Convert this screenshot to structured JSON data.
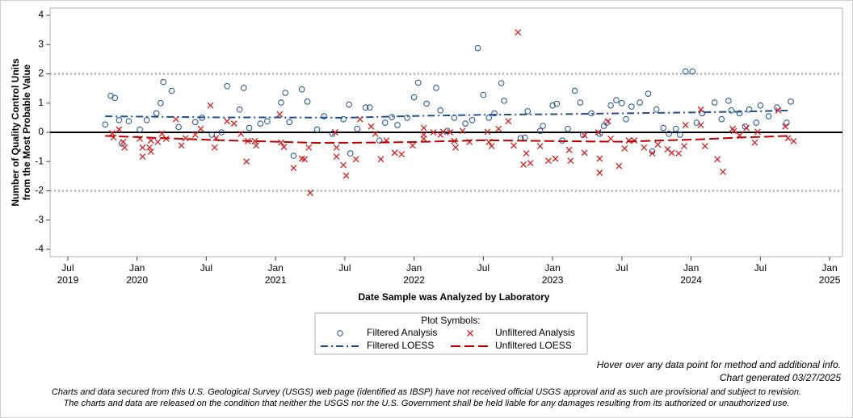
{
  "chart_data": {
    "type": "scatter",
    "y_label": [
      "Number of Quality Control Units",
      "from the Most Probable Value"
    ],
    "x_label": "Date Sample was Analyzed by Laboratory",
    "xlim": [
      2019.372,
      2025.093
    ],
    "ylim": [
      -4.25,
      4.25
    ],
    "xticks": [
      {
        "value": 2019.5,
        "label": "Jul",
        "year": "2019"
      },
      {
        "value": 2020.0,
        "label": "Jan",
        "year": "2020"
      },
      {
        "value": 2020.5,
        "label": "Jul"
      },
      {
        "value": 2021.0,
        "label": "Jan",
        "year": "2021"
      },
      {
        "value": 2021.5,
        "label": "Jul"
      },
      {
        "value": 2022.0,
        "label": "Jan",
        "year": "2022"
      },
      {
        "value": 2022.5,
        "label": "Jul"
      },
      {
        "value": 2023.0,
        "label": "Jan",
        "year": "2023"
      },
      {
        "value": 2023.5,
        "label": "Jul"
      },
      {
        "value": 2024.0,
        "label": "Jan",
        "year": "2024"
      },
      {
        "value": 2024.5,
        "label": "Jul"
      },
      {
        "value": 2025.0,
        "label": "Jan",
        "year": "2025"
      }
    ],
    "yticks": [
      -4,
      -3,
      -2,
      -1,
      0,
      1,
      2,
      3,
      4
    ],
    "reference_lines": [
      -2,
      2
    ],
    "zero_line": 0,
    "legend_title": "Plot Symbols:",
    "series": [
      {
        "name": "Filtered Analysis",
        "color": "#1f4f8f",
        "marker": "circle",
        "x": [
          2019.77,
          2019.81,
          2019.84,
          2019.87,
          2019.89,
          2019.94,
          2020.02,
          2020.07,
          2020.14,
          2020.17,
          2020.19,
          2020.25,
          2020.3,
          2020.42,
          2020.47,
          2020.54,
          2020.61,
          2020.65,
          2020.74,
          2020.77,
          2020.81,
          2020.89,
          2020.94,
          2021.04,
          2021.07,
          2021.1,
          2021.13,
          2021.19,
          2021.23,
          2021.3,
          2021.35,
          2021.41,
          2021.49,
          2021.53,
          2021.54,
          2021.59,
          2021.65,
          2021.68,
          2021.75,
          2021.79,
          2021.84,
          2021.88,
          2021.95,
          2022.0,
          2022.03,
          2022.09,
          2022.16,
          2022.19,
          2022.24,
          2022.29,
          2022.37,
          2022.42,
          2022.46,
          2022.5,
          2022.54,
          2022.58,
          2022.63,
          2022.65,
          2022.77,
          2022.8,
          2022.82,
          2022.91,
          2022.93,
          2023.0,
          2023.03,
          2023.07,
          2023.11,
          2023.16,
          2023.2,
          2023.22,
          2023.28,
          2023.34,
          2023.37,
          2023.39,
          2023.42,
          2023.46,
          2023.5,
          2023.53,
          2023.57,
          2023.63,
          2023.69,
          2023.72,
          2023.75,
          2023.8,
          2023.84,
          2023.89,
          2023.92,
          2023.96,
          2024.01,
          2024.04,
          2024.08,
          2024.17,
          2024.22,
          2024.27,
          2024.29,
          2024.35,
          2024.39,
          2024.42,
          2024.47,
          2024.5,
          2024.56,
          2024.62,
          2024.69,
          2024.72
        ],
        "values": [
          0.27,
          1.25,
          1.18,
          0.42,
          -0.38,
          0.38,
          0.1,
          0.42,
          0.65,
          1.0,
          1.72,
          1.42,
          0.18,
          0.35,
          0.5,
          -0.08,
          0.0,
          1.58,
          0.78,
          1.52,
          0.15,
          0.3,
          0.38,
          1.02,
          1.35,
          0.35,
          -0.8,
          1.47,
          1.05,
          0.1,
          0.55,
          -0.05,
          0.45,
          0.95,
          -0.72,
          0.12,
          0.85,
          0.85,
          -0.28,
          0.33,
          0.52,
          0.25,
          0.5,
          1.2,
          1.7,
          0.98,
          1.52,
          0.75,
          0.05,
          0.5,
          0.3,
          0.42,
          2.88,
          1.28,
          0.5,
          0.65,
          1.68,
          1.08,
          -0.2,
          -0.18,
          0.72,
          0.05,
          0.22,
          0.92,
          0.98,
          -0.28,
          0.12,
          1.42,
          1.02,
          -0.08,
          0.65,
          -0.05,
          0.22,
          0.33,
          0.92,
          1.1,
          1.0,
          0.45,
          0.88,
          1.02,
          1.32,
          -0.65,
          0.78,
          0.15,
          -0.05,
          0.12,
          -0.08,
          2.08,
          2.08,
          0.33,
          0.65,
          1.02,
          0.45,
          1.08,
          0.75,
          0.65,
          0.2,
          0.78,
          0.33,
          0.92,
          0.55,
          0.85,
          0.33,
          1.05
        ]
      },
      {
        "name": "Unfiltered Analysis",
        "color": "#d42020",
        "marker": "x",
        "x": [
          2019.82,
          2019.83,
          2019.87,
          2019.9,
          2019.91,
          2020.02,
          2020.04,
          2020.04,
          2020.09,
          2020.1,
          2020.1,
          2020.15,
          2020.18,
          2020.21,
          2020.28,
          2020.32,
          2020.35,
          2020.42,
          2020.46,
          2020.53,
          2020.56,
          2020.57,
          2020.65,
          2020.7,
          2020.75,
          2020.79,
          2020.8,
          2020.85,
          2020.86,
          2021.03,
          2021.04,
          2021.06,
          2021.13,
          2021.19,
          2021.21,
          2021.24,
          2021.25,
          2021.43,
          2021.44,
          2021.44,
          2021.49,
          2021.51,
          2021.58,
          2021.61,
          2021.69,
          2021.72,
          2021.76,
          2021.8,
          2021.86,
          2021.91,
          2021.99,
          2022.07,
          2022.07,
          2022.07,
          2022.14,
          2022.19,
          2022.21,
          2022.26,
          2022.29,
          2022.3,
          2022.35,
          2022.4,
          2022.53,
          2022.54,
          2022.56,
          2022.61,
          2022.68,
          2022.72,
          2022.75,
          2022.79,
          2022.81,
          2022.84,
          2022.91,
          2022.97,
          2023.02,
          2023.12,
          2023.13,
          2023.23,
          2023.23,
          2023.33,
          2023.34,
          2023.34,
          2023.4,
          2023.42,
          2023.48,
          2023.52,
          2023.55,
          2023.59,
          2023.66,
          2023.72,
          2023.76,
          2023.83,
          2023.86,
          2023.91,
          2023.95,
          2023.96,
          2024.07,
          2024.07,
          2024.1,
          2024.19,
          2024.23,
          2024.3,
          2024.31,
          2024.35,
          2024.4,
          2024.46,
          2024.48,
          2024.63,
          2024.68,
          2024.7,
          2024.74
        ],
        "values": [
          -0.03,
          -0.17,
          0.1,
          -0.33,
          -0.52,
          -0.22,
          -0.52,
          -0.83,
          -0.52,
          -0.28,
          -0.66,
          -0.33,
          -0.05,
          -0.22,
          0.45,
          -0.45,
          -0.2,
          -0.08,
          0.12,
          0.92,
          -0.52,
          -0.2,
          0.38,
          0.3,
          -0.05,
          -1.0,
          -0.3,
          -0.3,
          -0.45,
          0.62,
          -0.35,
          -0.5,
          -1.22,
          -0.9,
          -0.92,
          -0.52,
          -2.07,
          0.0,
          -0.52,
          -0.83,
          -1.12,
          -1.48,
          -0.92,
          0.45,
          0.2,
          -0.05,
          -0.92,
          -0.28,
          -0.7,
          -0.75,
          -0.45,
          0.15,
          -0.08,
          -0.22,
          0.0,
          -0.08,
          0.02,
          0.0,
          -0.3,
          -0.52,
          0.05,
          -0.33,
          0.02,
          -0.33,
          -0.47,
          0.12,
          0.38,
          -0.45,
          3.42,
          -1.1,
          -0.72,
          -1.05,
          -0.47,
          -0.97,
          -0.9,
          -0.6,
          -0.97,
          -0.7,
          -0.1,
          0.0,
          -0.9,
          -1.38,
          0.38,
          -0.22,
          -1.15,
          -0.55,
          -0.28,
          -0.28,
          -0.52,
          -0.72,
          -0.42,
          -0.58,
          -0.7,
          -0.72,
          -0.47,
          0.25,
          0.78,
          0.25,
          -0.47,
          -0.92,
          -1.35,
          0.12,
          0.05,
          -0.1,
          0.15,
          -0.35,
          0.02,
          0.75,
          0.2,
          -0.2,
          -0.3
        ]
      },
      {
        "name": "Filtered LOESS",
        "color": "#1f4f8f",
        "line": "dashdot",
        "x": [
          2019.77,
          2020.2,
          2020.6,
          2021.0,
          2021.5,
          2022.0,
          2022.5,
          2023.0,
          2023.5,
          2024.0,
          2024.4,
          2024.72
        ],
        "values": [
          0.55,
          0.53,
          0.51,
          0.51,
          0.5,
          0.56,
          0.6,
          0.62,
          0.65,
          0.68,
          0.71,
          0.75
        ]
      },
      {
        "name": "Unfiltered LOESS",
        "color": "#c00000",
        "line": "dash",
        "x": [
          2019.77,
          2020.2,
          2020.6,
          2021.0,
          2021.3,
          2021.7,
          2022.0,
          2022.5,
          2023.0,
          2023.5,
          2024.0,
          2024.4,
          2024.72
        ],
        "values": [
          -0.12,
          -0.2,
          -0.27,
          -0.32,
          -0.36,
          -0.35,
          -0.33,
          -0.27,
          -0.3,
          -0.32,
          -0.25,
          -0.17,
          -0.12
        ]
      }
    ]
  },
  "notes": [
    "Hover over any data point for method and additional info.",
    "Chart generated 03/27/2025"
  ],
  "disclaimer": [
    "Charts and data secured from this U.S. Geological Survey (USGS) web page (identified as IBSP) have not received official USGS approval and as such are provisional and subject to revision.",
    "The charts and data are released on the condition that neither the USGS nor the U.S. Government shall be held liable for any damages resulting from its authorized or unauthorized use."
  ]
}
